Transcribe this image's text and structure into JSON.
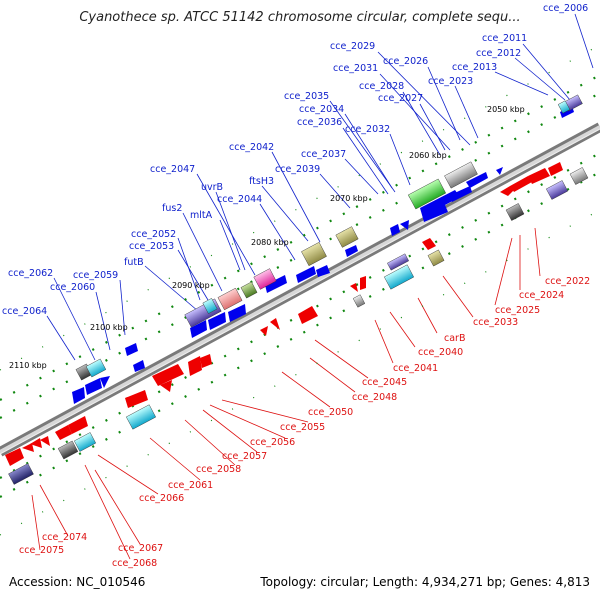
{
  "title": "Cyanothece sp. ATCC 51142 chromosome circular, complete sequ...",
  "footer": {
    "accession": "Accession: NC_010546",
    "summary": "Topology: circular; Length: 4,934,271 bp; Genes: 4,813"
  },
  "colors": {
    "forward": "#0000ee",
    "reverse": "#ee0000",
    "backbone": "#999999",
    "tick": "#118811"
  },
  "kbp_labels": [
    "2050 kbp",
    "2060 kbp",
    "2070 kbp",
    "2080 kbp",
    "2090 kbp",
    "2100 kbp",
    "2110 kbp"
  ],
  "top_labels": [
    "cce_2006",
    "cce_2011",
    "cce_2012",
    "cce_2013",
    "cce_2029",
    "cce_2026",
    "cce_2031",
    "cce_2023",
    "cce_2028",
    "cce_2027",
    "cce_2035",
    "cce_2034",
    "cce_2036",
    "cce_2032",
    "cce_2042",
    "cce_2037",
    "cce_2039",
    "ftsH3",
    "cce_2047",
    "uvrB",
    "cce_2044",
    "fus2",
    "mltA",
    "cce_2052",
    "cce_2053",
    "futB",
    "cce_2062",
    "cce_2059",
    "cce_2060",
    "cce_2064"
  ],
  "bottom_labels": [
    "cce_2022",
    "cce_2024",
    "cce_2025",
    "cce_2033",
    "carB",
    "cce_2040",
    "cce_2041",
    "cce_2045",
    "cce_2048",
    "cce_2050",
    "cce_2055",
    "cce_2056",
    "cce_2057",
    "cce_2058",
    "cce_2061",
    "cce_2066",
    "cce_2067",
    "cce_2068",
    "cce_2074",
    "cce_2075"
  ]
}
